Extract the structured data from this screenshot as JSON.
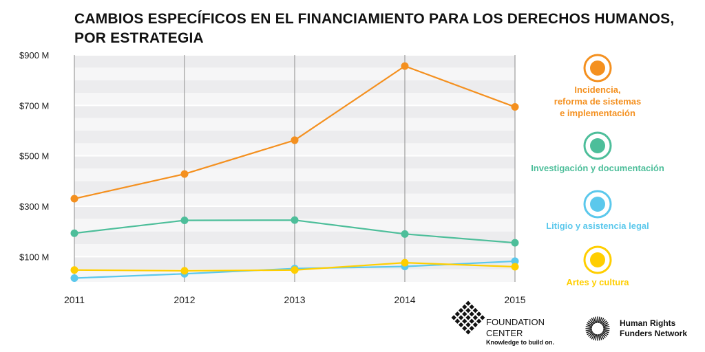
{
  "title": {
    "line1": "CAMBIOS ESPECÍFICOS EN EL FINANCIAMIENTO PARA LOS DERECHOS HUMANOS,",
    "line2": "POR ESTRATEGIA"
  },
  "chart_data": {
    "type": "line",
    "title": "CAMBIOS ESPECÍFICOS EN EL FINANCIAMIENTO PARA LOS DERECHOS HUMANOS, POR ESTRATEGIA",
    "xlabel": "",
    "ylabel": "",
    "categories": [
      "2011",
      "2012",
      "2013",
      "2014",
      "2015"
    ],
    "ylim": [
      0,
      900
    ],
    "y_ticks": [
      100,
      300,
      500,
      700,
      900
    ],
    "y_tick_labels": [
      "$100 M",
      "$300 M",
      "$500 M",
      "$700 M",
      "$900 M"
    ],
    "grid": true,
    "series": [
      {
        "name": "Incidencia, reforma de sistemas e implementación",
        "color": "#F4901F",
        "values": [
          330,
          428,
          562,
          856,
          694
        ]
      },
      {
        "name": "Investigación y documentación",
        "color": "#4DBE9A",
        "values": [
          193,
          244,
          245,
          190,
          155
        ]
      },
      {
        "name": "Litigio y asistencia legal",
        "color": "#5BC8EC",
        "values": [
          15,
          32,
          53,
          61,
          82
        ]
      },
      {
        "name": "Artes y cultura",
        "color": "#FFCE00",
        "values": [
          47,
          44,
          47,
          76,
          60
        ]
      }
    ]
  },
  "legend": [
    {
      "lines": [
        "Incidencia,",
        "reforma de sistemas",
        "e implementación"
      ],
      "color": "#F4901F"
    },
    {
      "lines": [
        "Investigación y documentación"
      ],
      "color": "#4DBE9A"
    },
    {
      "lines": [
        "Litigio y asistencia legal"
      ],
      "color": "#5BC8EC"
    },
    {
      "lines": [
        "Artes y cultura"
      ],
      "color": "#FFCE00"
    }
  ],
  "logos": {
    "foundation_center": {
      "line1": "FOUNDATION",
      "line2": "CENTER",
      "tagline": "Knowledge to build on."
    },
    "hrfn": {
      "line1": "Human Rights",
      "line2": "Funders Network"
    }
  }
}
